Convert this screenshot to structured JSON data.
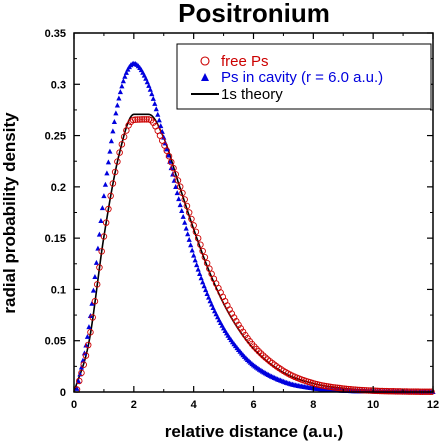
{
  "chart_data": {
    "type": "scatter",
    "title": "Positronium",
    "xlabel": "relative distance (a.u.)",
    "ylabel": "radial probability density",
    "xlim": [
      0,
      12
    ],
    "ylim": [
      0,
      0.35
    ],
    "xticks": [
      0,
      2,
      4,
      6,
      8,
      10,
      12
    ],
    "yticks": [
      0,
      0.05,
      0.1,
      0.15,
      0.2,
      0.25,
      0.3,
      0.35
    ],
    "ytick_labels": [
      "0",
      "0.05",
      "0.1",
      "0.15",
      "0.2",
      "0.25",
      "0.3",
      "0.35"
    ],
    "legend_position": "top-right",
    "grid": false,
    "series": [
      {
        "name": "free Ps",
        "marker": "open-circle",
        "color": "#cc0000",
        "x": [
          0.1,
          0.5,
          1.0,
          1.5,
          2.0,
          2.5,
          3.0,
          3.5,
          4.0,
          4.5,
          5.0,
          5.5,
          6.0,
          7.0,
          8.0,
          9.0,
          10.0,
          11.0,
          12.0
        ],
        "y": [
          0.0024,
          0.0497,
          0.1516,
          0.2306,
          0.2654,
          0.2658,
          0.2419,
          0.2042,
          0.1624,
          0.122,
          0.0913,
          0.0654,
          0.0451,
          0.0206,
          0.0085,
          0.0034,
          0.0013,
          0.0005,
          0.0002
        ]
      },
      {
        "name": "Ps in cavity (r = 6.0 a.u.)",
        "marker": "filled-triangle",
        "color": "#0000dd",
        "x": [
          0.1,
          0.5,
          1.0,
          1.5,
          2.0,
          2.5,
          3.0,
          3.5,
          4.0,
          4.5,
          5.0,
          5.5,
          6.0,
          7.0,
          8.0,
          9.0,
          10.0,
          11.0,
          12.0
        ],
        "y": [
          0.0031,
          0.0633,
          0.191,
          0.2862,
          0.32,
          0.2985,
          0.248,
          0.188,
          0.133,
          0.092,
          0.062,
          0.041,
          0.026,
          0.01,
          0.0035,
          0.0012,
          0.0004,
          0.0001,
          0.0
        ]
      },
      {
        "name": "1s theory",
        "marker": "line",
        "color": "#000000",
        "x": [
          0.0,
          0.5,
          1.0,
          1.5,
          2.0,
          2.5,
          3.0,
          3.5,
          4.0,
          4.5,
          5.0,
          5.5,
          6.0,
          7.0,
          8.0,
          9.0,
          10.0,
          11.0,
          12.0
        ],
        "y": [
          0.0,
          0.0487,
          0.1516,
          0.2306,
          0.2707,
          0.2707,
          0.2478,
          0.203,
          0.1588,
          0.119,
          0.0863,
          0.0611,
          0.0422,
          0.019,
          0.0083,
          0.0036,
          0.0015,
          0.0006,
          0.0002
        ]
      }
    ]
  },
  "colors": {
    "free_ps": "#cc0000",
    "cavity": "#0000dd",
    "theory": "#000000"
  }
}
